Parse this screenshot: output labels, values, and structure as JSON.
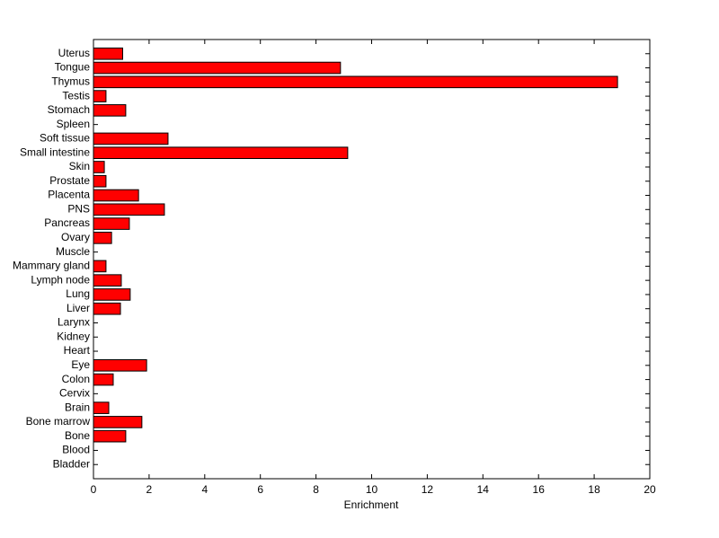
{
  "chart_data": {
    "type": "barh",
    "x_label": "Enrichment",
    "categories": [
      "Uterus",
      "Tongue",
      "Thymus",
      "Testis",
      "Stomach",
      "Spleen",
      "Soft tissue",
      "Small intestine",
      "Skin",
      "Prostate",
      "Placenta",
      "PNS",
      "Pancreas",
      "Ovary",
      "Muscle",
      "Mammary gland",
      "Lymph node",
      "Lung",
      "Liver",
      "Larynx",
      "Kidney",
      "Heart",
      "Eye",
      "Colon",
      "Cervix",
      "Brain",
      "Bone marrow",
      "Bone",
      "Blood",
      "Bladder"
    ],
    "values": [
      1.05,
      8.88,
      18.84,
      0.45,
      1.16,
      0,
      2.68,
      9.14,
      0.39,
      0.45,
      1.62,
      2.55,
      1.29,
      0.65,
      0,
      0.45,
      1.0,
      1.32,
      0.97,
      0,
      0,
      0,
      1.91,
      0.71,
      0,
      0.55,
      1.74,
      1.16,
      0,
      0
    ],
    "color": "#ff0000",
    "xlim": [
      0,
      20
    ],
    "xticks": [
      0,
      2,
      4,
      6,
      8,
      10,
      12,
      14,
      16,
      18,
      20
    ]
  }
}
